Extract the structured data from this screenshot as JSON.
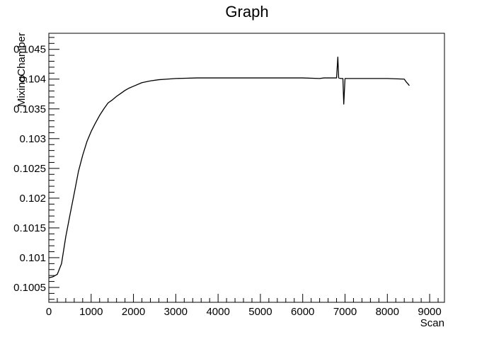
{
  "chart_data": {
    "type": "line",
    "title": "Graph",
    "xlabel": "Scan",
    "ylabel": "MixingChamber",
    "xlim": [
      0,
      9350
    ],
    "ylim": [
      0.10025,
      0.10477
    ],
    "x_ticks": [
      0,
      1000,
      2000,
      3000,
      4000,
      5000,
      6000,
      7000,
      8000,
      9000
    ],
    "x_tick_labels": [
      "0",
      "1000",
      "2000",
      "3000",
      "4000",
      "5000",
      "6000",
      "7000",
      "8000",
      "9000"
    ],
    "y_ticks": [
      0.1005,
      0.101,
      0.1015,
      0.102,
      0.1025,
      0.103,
      0.1035,
      0.104,
      0.1045
    ],
    "y_tick_labels": [
      "0.1005",
      "0.101",
      "0.1015",
      "0.102",
      "0.1025",
      "0.103",
      "0.1035",
      "0.104",
      "0.1045"
    ],
    "grid": false,
    "legend": "none",
    "line_color": "#000000",
    "series": [
      {
        "x": [
          0,
          100,
          200,
          300,
          400,
          500,
          600,
          700,
          800,
          900,
          1000,
          1100,
          1200,
          1300,
          1400,
          1500,
          1600,
          1700,
          1800,
          1900,
          2000,
          2200,
          2400,
          2600,
          2800,
          3000,
          3500,
          4000,
          4500,
          5000,
          5500,
          6000,
          6400,
          6500,
          6800,
          6830,
          6850,
          6900,
          6950,
          6970,
          7000,
          7500,
          8000,
          8400,
          8450,
          8500,
          8520
        ],
        "y": [
          0.10066,
          0.10068,
          0.10072,
          0.1009,
          0.10135,
          0.10172,
          0.10208,
          0.10245,
          0.10272,
          0.10295,
          0.10312,
          0.10326,
          0.10339,
          0.1035,
          0.1036,
          0.10365,
          0.10371,
          0.10376,
          0.10381,
          0.10385,
          0.10388,
          0.10394,
          0.10397,
          0.10399,
          0.104,
          0.10401,
          0.10402,
          0.10402,
          0.10402,
          0.10402,
          0.10402,
          0.10402,
          0.10401,
          0.10402,
          0.10402,
          0.10437,
          0.10402,
          0.10401,
          0.10401,
          0.10358,
          0.10401,
          0.10401,
          0.10401,
          0.104,
          0.10395,
          0.10391,
          0.10389
        ]
      }
    ]
  }
}
